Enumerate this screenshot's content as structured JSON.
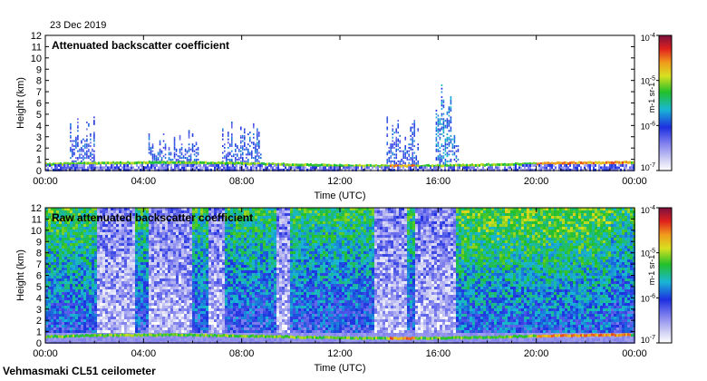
{
  "date": "23 Dec 2019",
  "footer": "Vehmasmaki CL51 ceilometer",
  "chart_data": [
    {
      "type": "heatmap",
      "title": "Attenuated backscatter coefficient",
      "xlabel": "Time (UTC)",
      "ylabel": "Height (km)",
      "x_ticks": [
        "00:00",
        "04:00",
        "08:00",
        "12:00",
        "16:00",
        "20:00",
        "00:00"
      ],
      "y_ticks": [
        "0",
        "1",
        "2",
        "3",
        "4",
        "5",
        "6",
        "7",
        "8",
        "9",
        "10",
        "11",
        "12"
      ],
      "ylim": [
        0,
        12
      ],
      "xlim_hours": [
        0,
        24
      ],
      "colorbar": {
        "scale": "log",
        "ticks": [
          "10-7",
          "10-6",
          "10-5",
          "10-4"
        ],
        "label": "m-1 sr-1"
      },
      "cloud_features": [
        {
          "start_hour": 1.0,
          "end_hour": 2.0,
          "top_km": 5.5
        },
        {
          "start_hour": 4.2,
          "end_hour": 6.2,
          "top_km": 3.8
        },
        {
          "start_hour": 7.2,
          "end_hour": 8.8,
          "top_km": 4.5
        },
        {
          "start_hour": 13.9,
          "end_hour": 15.2,
          "top_km": 5.0
        },
        {
          "start_hour": 15.9,
          "end_hour": 16.8,
          "top_km": 8.0
        }
      ]
    },
    {
      "type": "heatmap",
      "title": "Raw attenuated backscatter coefficient",
      "xlabel": "Time (UTC)",
      "ylabel": "Height (km)",
      "x_ticks": [
        "00:00",
        "04:00",
        "08:00",
        "12:00",
        "16:00",
        "20:00",
        "00:00"
      ],
      "y_ticks": [
        "0",
        "1",
        "2",
        "3",
        "4",
        "5",
        "6",
        "7",
        "8",
        "9",
        "10",
        "11",
        "12"
      ],
      "ylim": [
        0,
        12
      ],
      "xlim_hours": [
        0,
        24
      ],
      "colorbar": {
        "scale": "log",
        "ticks": [
          "10-7",
          "10-6",
          "10-5",
          "10-4"
        ],
        "label": "m-1 sr-1"
      }
    }
  ]
}
